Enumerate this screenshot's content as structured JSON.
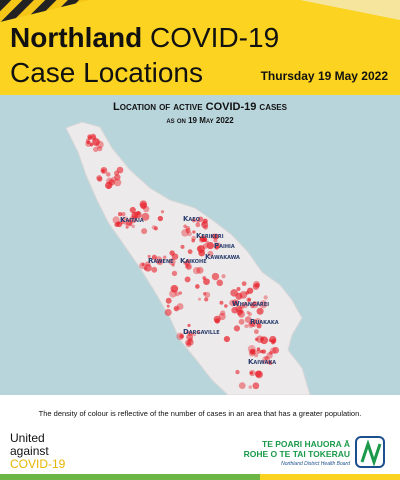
{
  "header": {
    "title_bold": "Northland",
    "title_rest": "COVID-19",
    "title_line2": "Case Locations",
    "date": "Thursday 19 May 2022"
  },
  "map": {
    "title": "Location of active COVID-19 cases",
    "subtitle": "as on 19 May 2022",
    "places": [
      "Kaitaia",
      "Kaeo",
      "Kerikeri",
      "Paihia",
      "Rawene",
      "Kaikohe",
      "Kawakawa",
      "Whangārei",
      "Ruakaka",
      "Dargaville",
      "Kaiwaka"
    ]
  },
  "caption": "The density of colour is reflective of the number of cases in an area that has a greater population.",
  "footer": {
    "campaign": [
      "United",
      "against",
      "COVID-19"
    ],
    "dhb_line1": "TE POARI HAUORA Ā",
    "dhb_line2": "ROHE O TE TAI TOKERAU",
    "dhb_name": "Northland District Health Board"
  }
}
